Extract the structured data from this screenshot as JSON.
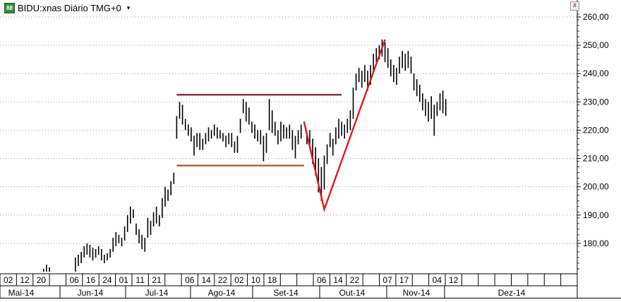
{
  "header": {
    "icon_label": "88",
    "title": "BIDU:xnas Diário TMG+0",
    "dropdown_symbol": "▾"
  },
  "close_symbol": "x",
  "colors": {
    "bars": "#000000",
    "resistance_line": "#7a1010",
    "support_line": "#b8501e",
    "v_pattern": "#e0191e",
    "grid": "#9a9a9a",
    "background": "#ffffff"
  },
  "chart_data": {
    "type": "ohlc",
    "title": "BIDU:xnas Diário TMG+0",
    "y_axis": {
      "position": "right",
      "ylim": [
        170,
        263
      ],
      "ticks": [
        180,
        190,
        200,
        210,
        220,
        230,
        240,
        250,
        260
      ],
      "tick_labels": [
        "180,00",
        "190,00",
        "200,00",
        "210,00",
        "220,00",
        "230,00",
        "240,00",
        "250,00",
        "260,00"
      ]
    },
    "x_axis": {
      "day_labels": [
        "02",
        "12",
        "20",
        "06",
        "16",
        "24",
        "01",
        "11",
        "21",
        "06",
        "14",
        "22",
        "02",
        "10",
        "18",
        "06",
        "14",
        "22",
        "07",
        "17",
        "04",
        "12"
      ],
      "month_labels": [
        "Mai-14",
        "Jun-14",
        "Jul-14",
        "Ago-14",
        "Set-14",
        "Out-14",
        "Nov-14",
        "Dez-14"
      ]
    },
    "series": [
      {
        "values": [
          [
            6,
            171,
            169
          ],
          [
            7,
            172.5,
            170
          ],
          [
            8,
            171.5,
            169
          ],
          [
            17,
            175,
            170
          ],
          [
            18,
            176,
            172
          ],
          [
            19,
            177,
            173
          ],
          [
            20,
            179,
            175
          ],
          [
            21,
            180,
            176
          ],
          [
            22,
            179.5,
            175
          ],
          [
            23,
            178.5,
            174
          ],
          [
            24,
            178,
            175
          ],
          [
            25,
            179,
            176
          ],
          [
            26,
            178,
            174
          ],
          [
            27,
            176,
            173
          ],
          [
            28,
            176.5,
            174
          ],
          [
            29,
            178,
            175
          ],
          [
            30,
            182,
            177
          ],
          [
            31,
            184,
            179
          ],
          [
            32,
            183,
            180
          ],
          [
            33,
            182,
            179
          ],
          [
            34,
            186,
            181
          ],
          [
            35,
            190,
            184
          ],
          [
            36,
            193,
            187
          ],
          [
            37,
            192,
            189
          ],
          [
            38,
            187,
            183
          ],
          [
            39,
            185,
            180
          ],
          [
            40,
            183,
            178
          ],
          [
            41,
            182,
            177
          ],
          [
            42,
            189,
            182
          ],
          [
            43,
            188,
            183
          ],
          [
            44,
            191,
            186
          ],
          [
            45,
            193,
            187
          ],
          [
            46,
            190,
            186
          ],
          [
            47,
            196,
            189
          ],
          [
            48,
            200,
            193
          ],
          [
            49,
            199,
            195
          ],
          [
            50,
            202,
            197
          ],
          [
            51,
            205,
            201
          ],
          [
            52,
            225,
            217
          ],
          [
            53,
            230,
            224
          ],
          [
            54,
            229,
            222
          ],
          [
            55,
            224,
            220
          ],
          [
            56,
            222,
            218
          ],
          [
            57,
            221,
            216
          ],
          [
            58,
            218,
            211
          ],
          [
            59,
            219,
            214
          ],
          [
            60,
            219,
            213
          ],
          [
            61,
            217,
            213
          ],
          [
            62,
            219,
            215
          ],
          [
            63,
            221,
            216
          ],
          [
            64,
            220,
            217
          ],
          [
            65,
            222,
            218
          ],
          [
            66,
            221,
            217
          ],
          [
            67,
            220,
            217
          ],
          [
            68,
            219,
            216
          ],
          [
            69,
            218,
            214
          ],
          [
            70,
            219,
            215
          ],
          [
            71,
            219,
            214
          ],
          [
            72,
            216,
            212
          ],
          [
            73,
            218,
            212
          ],
          [
            74,
            224,
            219
          ],
          [
            75,
            231,
            226
          ],
          [
            76,
            230,
            223
          ],
          [
            77,
            228,
            222
          ],
          [
            78,
            223,
            219
          ],
          [
            79,
            222,
            217
          ],
          [
            80,
            220,
            216
          ],
          [
            81,
            220,
            215
          ],
          [
            82,
            218,
            209
          ],
          [
            83,
            219,
            212
          ],
          [
            84,
            231,
            220
          ],
          [
            85,
            227,
            219
          ],
          [
            86,
            223,
            218
          ],
          [
            87,
            220,
            215
          ],
          [
            88,
            223,
            216
          ],
          [
            89,
            222,
            217
          ],
          [
            90,
            221,
            217
          ],
          [
            91,
            222,
            217
          ],
          [
            92,
            220,
            213
          ],
          [
            93,
            218,
            210
          ],
          [
            94,
            220,
            215
          ],
          [
            95,
            222,
            217
          ],
          [
            97,
            219,
            215
          ],
          [
            98,
            220,
            214
          ],
          [
            99,
            217,
            208
          ],
          [
            100,
            214,
            204
          ],
          [
            101,
            210,
            198
          ],
          [
            102,
            207,
            195
          ],
          [
            103,
            211,
            199
          ],
          [
            104,
            215,
            208
          ],
          [
            105,
            219,
            214
          ],
          [
            106,
            217,
            211
          ],
          [
            107,
            221,
            215
          ],
          [
            108,
            224,
            217
          ],
          [
            109,
            223,
            218
          ],
          [
            110,
            222,
            217
          ],
          [
            111,
            224,
            219
          ],
          [
            112,
            227,
            220
          ],
          [
            113,
            235,
            224
          ],
          [
            114,
            240,
            234
          ],
          [
            115,
            242,
            237
          ],
          [
            116,
            241,
            235
          ],
          [
            117,
            243,
            237
          ],
          [
            118,
            241,
            234
          ],
          [
            119,
            243,
            236
          ],
          [
            120,
            247,
            240
          ],
          [
            121,
            249,
            244
          ],
          [
            122,
            250,
            245
          ],
          [
            123,
            252,
            246
          ],
          [
            124,
            251,
            244
          ],
          [
            125,
            249,
            242
          ],
          [
            126,
            245,
            239
          ],
          [
            127,
            243,
            237
          ],
          [
            128,
            242,
            236
          ],
          [
            129,
            246,
            240
          ],
          [
            130,
            248,
            242
          ],
          [
            131,
            247,
            241
          ],
          [
            132,
            248,
            242
          ],
          [
            133,
            246,
            240
          ],
          [
            134,
            240,
            234
          ],
          [
            135,
            238,
            232
          ],
          [
            136,
            236,
            230
          ],
          [
            137,
            233,
            227
          ],
          [
            138,
            231,
            225
          ],
          [
            139,
            230,
            223
          ],
          [
            140,
            232,
            224
          ],
          [
            141,
            229,
            218
          ],
          [
            142,
            230,
            225
          ],
          [
            143,
            233,
            227
          ],
          [
            144,
            234,
            226
          ],
          [
            145,
            231,
            225
          ]
        ]
      }
    ],
    "annotations": [
      {
        "type": "hline",
        "y": 232.5,
        "x_from": 52,
        "x_to": 109,
        "color": "#7a1010"
      },
      {
        "type": "hline",
        "y": 207.5,
        "x_from": 52,
        "x_to": 96,
        "color": "#b8501e"
      },
      {
        "type": "polyline",
        "points": [
          [
            96,
            223
          ],
          [
            103,
            192
          ],
          [
            124,
            252
          ]
        ],
        "color": "#e0191e"
      }
    ]
  }
}
